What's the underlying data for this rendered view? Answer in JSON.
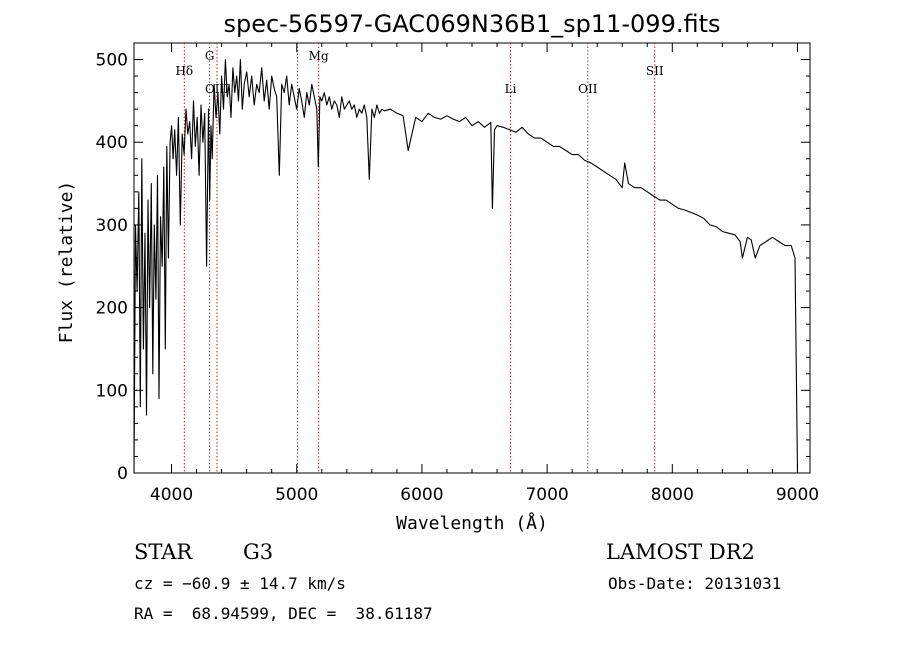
{
  "chart_data": {
    "type": "line",
    "title": "spec-56597-GAC069N36B1_sp11-099.fits",
    "xlabel": "Wavelength (Å)",
    "ylabel": "Flux (relative)",
    "xlim": [
      3700,
      9100
    ],
    "ylim": [
      0,
      520
    ],
    "xticks": [
      4000,
      5000,
      6000,
      7000,
      8000,
      9000
    ],
    "yticks": [
      0,
      100,
      200,
      300,
      400,
      500
    ],
    "grid": false,
    "series": [
      {
        "color": "#000000",
        "x": [
          3700,
          3712,
          3725,
          3738,
          3750,
          3762,
          3775,
          3788,
          3800,
          3812,
          3825,
          3838,
          3850,
          3862,
          3875,
          3888,
          3900,
          3912,
          3925,
          3938,
          3950,
          3962,
          3975,
          3988,
          4000,
          4012,
          4025,
          4040,
          4055,
          4070,
          4085,
          4100,
          4115,
          4130,
          4145,
          4160,
          4175,
          4190,
          4205,
          4220,
          4235,
          4250,
          4265,
          4280,
          4295,
          4305,
          4315,
          4325,
          4340,
          4355,
          4370,
          4385,
          4400,
          4415,
          4430,
          4445,
          4460,
          4475,
          4490,
          4505,
          4520,
          4535,
          4550,
          4565,
          4580,
          4600,
          4620,
          4640,
          4660,
          4680,
          4700,
          4720,
          4740,
          4760,
          4780,
          4800,
          4820,
          4840,
          4861,
          4880,
          4900,
          4920,
          4940,
          4960,
          4980,
          5000,
          5020,
          5040,
          5060,
          5080,
          5100,
          5120,
          5140,
          5160,
          5172,
          5185,
          5200,
          5220,
          5240,
          5260,
          5280,
          5300,
          5320,
          5340,
          5360,
          5380,
          5400,
          5420,
          5440,
          5460,
          5480,
          5500,
          5520,
          5540,
          5560,
          5580,
          5600,
          5620,
          5640,
          5660,
          5680,
          5700,
          5750,
          5800,
          5850,
          5890,
          5950,
          6000,
          6050,
          6100,
          6150,
          6200,
          6250,
          6300,
          6350,
          6400,
          6450,
          6500,
          6550,
          6563,
          6580,
          6600,
          6650,
          6700,
          6750,
          6800,
          6850,
          6900,
          6950,
          7000,
          7050,
          7100,
          7150,
          7200,
          7250,
          7300,
          7350,
          7400,
          7450,
          7500,
          7550,
          7600,
          7620,
          7650,
          7700,
          7750,
          7800,
          7850,
          7900,
          7950,
          8000,
          8050,
          8100,
          8150,
          8200,
          8250,
          8300,
          8350,
          8400,
          8450,
          8500,
          8542,
          8560,
          8600,
          8630,
          8662,
          8700,
          8750,
          8800,
          8850,
          8900,
          8950,
          8980,
          9000
        ],
        "values": [
          0,
          300,
          220,
          340,
          80,
          380,
          150,
          290,
          70,
          330,
          200,
          350,
          120,
          300,
          210,
          360,
          90,
          310,
          250,
          370,
          150,
          395,
          260,
          400,
          420,
          380,
          415,
          360,
          430,
          300,
          410,
          385,
          440,
          410,
          425,
          380,
          450,
          395,
          430,
          360,
          445,
          400,
          435,
          250,
          440,
          330,
          420,
          380,
          470,
          430,
          460,
          410,
          480,
          440,
          500,
          455,
          470,
          430,
          490,
          460,
          480,
          450,
          500,
          440,
          470,
          485,
          455,
          480,
          445,
          470,
          460,
          490,
          450,
          475,
          440,
          480,
          465,
          455,
          360,
          470,
          460,
          480,
          445,
          470,
          455,
          440,
          465,
          450,
          430,
          460,
          445,
          470,
          455,
          440,
          370,
          455,
          450,
          460,
          445,
          455,
          440,
          450,
          445,
          430,
          455,
          440,
          445,
          450,
          440,
          445,
          430,
          440,
          435,
          445,
          430,
          355,
          440,
          430,
          445,
          435,
          440,
          438,
          440,
          435,
          432,
          390,
          430,
          425,
          435,
          430,
          428,
          432,
          428,
          425,
          430,
          420,
          425,
          418,
          424,
          320,
          415,
          420,
          418,
          415,
          412,
          418,
          410,
          405,
          405,
          400,
          395,
          395,
          390,
          385,
          385,
          378,
          375,
          370,
          365,
          360,
          355,
          345,
          375,
          350,
          345,
          345,
          340,
          335,
          330,
          330,
          325,
          320,
          318,
          315,
          312,
          308,
          300,
          298,
          292,
          290,
          288,
          280,
          260,
          285,
          282,
          260,
          275,
          280,
          285,
          280,
          275,
          275,
          260,
          0
        ]
      }
    ],
    "lines": [
      {
        "label": "Hδ",
        "x": 4102
      },
      {
        "label": "G",
        "x": 4304
      },
      {
        "label": "OIII",
        "x": 4363
      },
      {
        "label": "",
        "x": 5007
      },
      {
        "label": "Mg",
        "x": 5175
      },
      {
        "label": "Li",
        "x": 6708
      },
      {
        "label": "OII",
        "x": 7325
      },
      {
        "label": "SII",
        "x": 7860
      }
    ]
  },
  "info": {
    "object_class": "STAR",
    "subclass": "G3",
    "survey": "LAMOST DR2",
    "cz": "cz = −60.9 ± 14.7 km/s",
    "obs_date": "Obs-Date: 20131031",
    "coords": "RA =  68.94599, DEC =  38.61187"
  },
  "colors": {
    "spectrum": "#000000",
    "line_marker": "#a0302a",
    "background": "#ffffff"
  }
}
